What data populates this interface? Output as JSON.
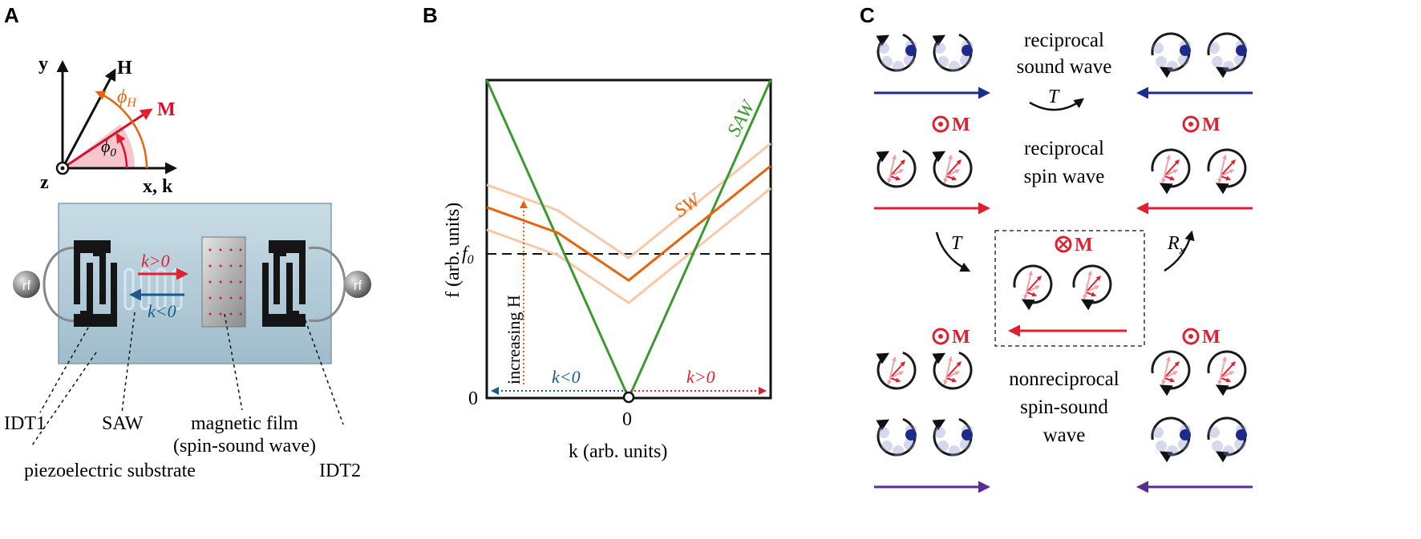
{
  "panels": {
    "a": {
      "letter": "A",
      "axes": {
        "y": "y",
        "x": "x, k",
        "z": "z"
      },
      "vectors": {
        "field": "H",
        "magnetization": "M"
      },
      "angles": {
        "phi_h": "ϕ",
        "phi_h_sub": "H",
        "phi_0": "ϕ",
        "phi_0_sub": "0"
      },
      "device": {
        "rf_left": "rf",
        "rf_right": "rf",
        "k_pos": "k>0",
        "k_neg": "k<0"
      },
      "labels": {
        "idt1": "IDT1",
        "saw": "SAW",
        "film_line1": "magnetic film",
        "film_line2": "(spin-sound wave)",
        "substrate": "piezoelectric substrate",
        "idt2": "IDT2"
      }
    },
    "b": {
      "letter": "B",
      "ylabel": "f (arb. units)",
      "y_tick_f0": "f",
      "y_tick_f0_sub": "0",
      "y_tick_zero": "0",
      "x_tick_zero": "0",
      "xlabel": "k (arb. units)",
      "saw": "SAW",
      "sw": "SW",
      "increasing": "increasing H",
      "k_neg": "k<0",
      "k_pos": "k>0"
    },
    "c": {
      "letter": "C",
      "rows": [
        {
          "line1": "reciprocal",
          "line2": "sound wave",
          "line3": ""
        },
        {
          "line1": "reciprocal",
          "line2": "spin wave",
          "line3": ""
        },
        {
          "line1": "nonreciprocal",
          "line2": "spin-sound",
          "line3": "wave"
        }
      ],
      "t_symbol": "T",
      "rx_symbol": "R",
      "rx_sub": "x",
      "m_out": "M",
      "m_in": "M"
    }
  },
  "colors": {
    "blue": "#1e2a8c",
    "red": "#e0202e",
    "purple": "#5a2d91",
    "orange": "#e8640c",
    "green": "#3b9a2e",
    "kblue": "#1a5a8e",
    "pink": "#f4a0a8"
  },
  "chart_data": {
    "type": "line",
    "xlabel": "k (arb. units)",
    "ylabel": "f (arb. units)",
    "series": [
      {
        "name": "SAW",
        "x": [
          -1,
          0,
          1
        ],
        "y": [
          1,
          0,
          1
        ]
      },
      {
        "name": "SW",
        "x": [
          -1,
          -0.5,
          0,
          0.5,
          1
        ],
        "y": [
          0.6,
          0.52,
          0.37,
          0.55,
          0.73
        ]
      }
    ]
  }
}
